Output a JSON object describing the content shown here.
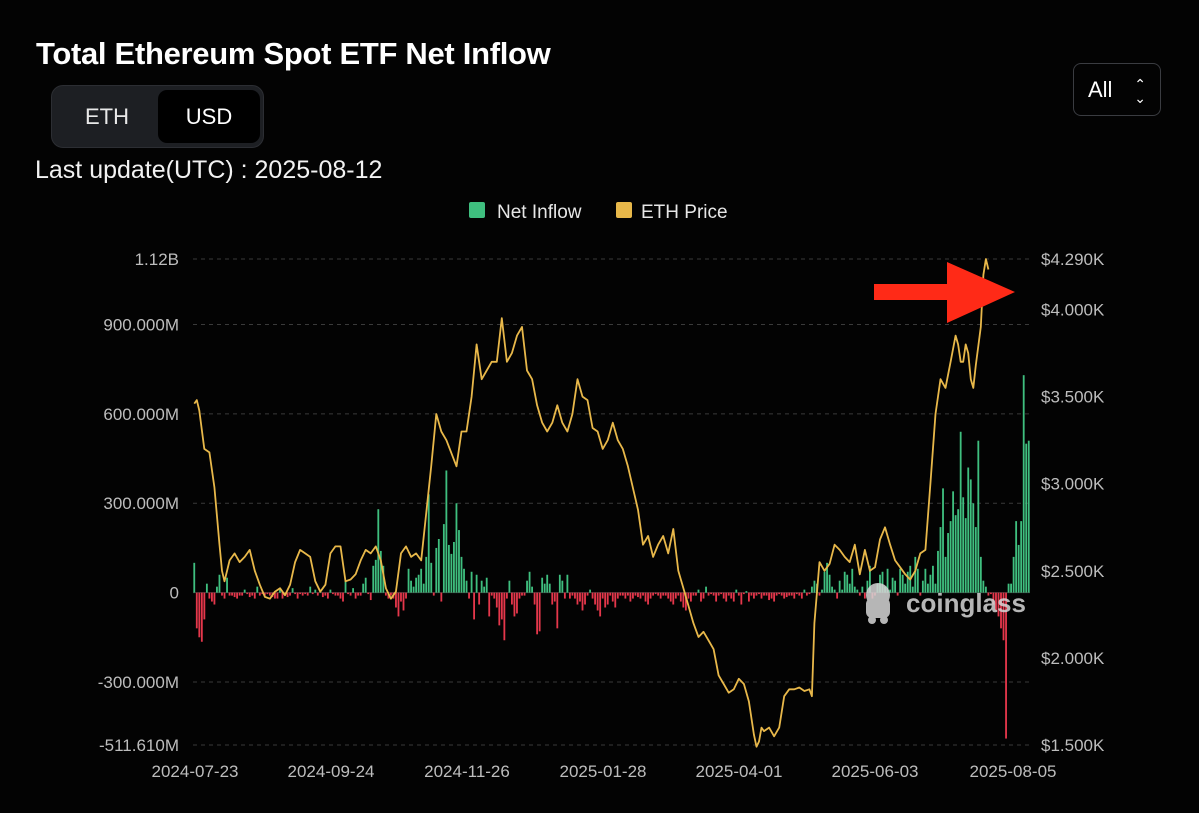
{
  "header": {
    "title": "Total Ethereum Spot ETF Net Inflow",
    "last_update": "Last update(UTC) : 2025-08-12"
  },
  "unit_toggle": {
    "options": [
      "ETH",
      "USD"
    ],
    "selected": "USD"
  },
  "range_select": {
    "value": "All"
  },
  "watermark": "coinglass",
  "colors": {
    "inflow": "#3fbf7f",
    "outflow": "#e5374b",
    "price": "#e8b84a",
    "grid": "#3a3a3a",
    "arrow": "#ff2a17"
  },
  "chart_data": {
    "type": "bar",
    "title": "Total Ethereum Spot ETF Net Inflow",
    "legend": [
      "Net Inflow",
      "ETH Price"
    ],
    "legend_position": "top-center",
    "x_tick_labels": [
      "2024-07-23",
      "2024-09-24",
      "2024-11-26",
      "2025-01-28",
      "2025-04-01",
      "2025-06-03",
      "2025-08-05"
    ],
    "x_range": [
      "2024-07-23",
      "2025-08-11"
    ],
    "left_axis": {
      "ylim": [
        -511610000,
        1120000000
      ],
      "tick_values": [
        1120000000,
        900000000,
        600000000,
        300000000,
        0,
        -300000000,
        -511610000
      ],
      "tick_labels": [
        "1.12B",
        "900.000M",
        "600.000M",
        "300.000M",
        "0",
        "-300.000M",
        "-511.610M"
      ]
    },
    "right_axis": {
      "ylim": [
        1500,
        4290
      ],
      "tick_values": [
        4290,
        4000,
        3500,
        3000,
        2500,
        2000,
        1500
      ],
      "tick_labels": [
        "$4.290K",
        "$4.000K",
        "$3.500K",
        "$3.000K",
        "$2.500K",
        "$2.000K",
        "$1.500K"
      ]
    },
    "series": [
      {
        "name": "Net Inflow",
        "axis": "left",
        "kind": "bar",
        "values": [
          100,
          -120,
          -150,
          -165,
          -90,
          30,
          -20,
          -30,
          -40,
          20,
          60,
          -10,
          -20,
          50,
          -10,
          -10,
          -15,
          -20,
          -10,
          -10,
          10,
          -5,
          -15,
          -10,
          -20,
          20,
          -10,
          -5,
          -10,
          -5,
          -10,
          -15,
          -20,
          -20,
          10,
          -20,
          -5,
          -15,
          -10,
          15,
          -5,
          -20,
          -5,
          -10,
          -5,
          -10,
          20,
          -5,
          10,
          -10,
          5,
          -15,
          -10,
          -20,
          10,
          -5,
          -10,
          -10,
          -20,
          -30,
          40,
          -5,
          -10,
          15,
          -20,
          -10,
          -10,
          30,
          50,
          -5,
          -25,
          90,
          110,
          280,
          140,
          90,
          -10,
          -20,
          -10,
          -20,
          -50,
          -80,
          -30,
          -60,
          -20,
          80,
          40,
          20,
          50,
          60,
          80,
          30,
          120,
          330,
          100,
          -10,
          150,
          180,
          -30,
          230,
          410,
          160,
          130,
          170,
          300,
          210,
          120,
          80,
          40,
          -20,
          70,
          -90,
          60,
          -40,
          40,
          20,
          50,
          -80,
          -10,
          -20,
          -50,
          -110,
          -90,
          -160,
          -20,
          40,
          -40,
          -80,
          -70,
          -20,
          -10,
          -10,
          40,
          70,
          20,
          -40,
          -140,
          -130,
          50,
          30,
          60,
          30,
          -40,
          -30,
          -120,
          60,
          40,
          -20,
          60,
          -20,
          -10,
          -20,
          -40,
          -30,
          -60,
          -40,
          -10,
          10,
          -20,
          -40,
          -60,
          -80,
          -20,
          -50,
          -40,
          -10,
          -30,
          -50,
          -20,
          -10,
          -10,
          -20,
          -10,
          -30,
          -20,
          -10,
          -15,
          -20,
          -10,
          -30,
          -40,
          -20,
          -10,
          -5,
          -10,
          -20,
          -10,
          -10,
          -20,
          -30,
          -40,
          -20,
          -10,
          -30,
          -50,
          -60,
          -20,
          -30,
          -10,
          -10,
          10,
          -30,
          -20,
          20,
          -10,
          -5,
          -10,
          -30,
          -10,
          -5,
          -20,
          -30,
          -10,
          -20,
          -30,
          10,
          -10,
          -40,
          -5,
          5,
          -30,
          -10,
          -20,
          -10,
          -5,
          -20,
          -10,
          -10,
          -25,
          -20,
          -30,
          -10,
          -5,
          -10,
          -20,
          -15,
          -10,
          -10,
          -20,
          -5,
          -10,
          -20,
          10,
          -10,
          -5,
          20,
          40,
          30,
          -10,
          10,
          70,
          100,
          60,
          20,
          10,
          -20,
          40,
          10,
          70,
          60,
          30,
          80,
          20,
          10,
          -10,
          20,
          -20,
          40,
          90,
          -20,
          -10,
          30,
          60,
          70,
          20,
          80,
          10,
          50,
          40,
          -10,
          80,
          60,
          30,
          70,
          90,
          20,
          120,
          80,
          -10,
          40,
          80,
          30,
          60,
          90,
          30,
          140,
          220,
          350,
          120,
          200,
          240,
          340,
          260,
          280,
          540,
          320,
          250,
          420,
          380,
          300,
          220,
          510,
          120,
          40,
          20,
          -10,
          -5,
          -40,
          -60,
          -80,
          -120,
          -160,
          -490,
          30,
          30,
          120,
          240,
          160,
          240,
          730,
          500,
          510
        ]
      },
      {
        "name": "ETH Price",
        "axis": "right",
        "kind": "line",
        "points": [
          [
            0,
            3460
          ],
          [
            1,
            3480
          ],
          [
            2,
            3420
          ],
          [
            4,
            3200
          ],
          [
            6,
            3180
          ],
          [
            8,
            2980
          ],
          [
            10,
            2650
          ],
          [
            11,
            2500
          ],
          [
            12,
            2440
          ],
          [
            14,
            2560
          ],
          [
            16,
            2600
          ],
          [
            18,
            2550
          ],
          [
            20,
            2580
          ],
          [
            22,
            2620
          ],
          [
            24,
            2500
          ],
          [
            26,
            2420
          ],
          [
            28,
            2350
          ],
          [
            30,
            2340
          ],
          [
            32,
            2380
          ],
          [
            34,
            2400
          ],
          [
            36,
            2360
          ],
          [
            38,
            2420
          ],
          [
            40,
            2550
          ],
          [
            42,
            2620
          ],
          [
            44,
            2600
          ],
          [
            46,
            2580
          ],
          [
            48,
            2440
          ],
          [
            50,
            2380
          ],
          [
            52,
            2420
          ],
          [
            54,
            2600
          ],
          [
            56,
            2640
          ],
          [
            58,
            2640
          ],
          [
            60,
            2440
          ],
          [
            62,
            2450
          ],
          [
            64,
            2480
          ],
          [
            66,
            2560
          ],
          [
            68,
            2620
          ],
          [
            70,
            2600
          ],
          [
            72,
            2640
          ],
          [
            74,
            2560
          ],
          [
            76,
            2400
          ],
          [
            78,
            2340
          ],
          [
            80,
            2380
          ],
          [
            82,
            2600
          ],
          [
            84,
            2640
          ],
          [
            86,
            2580
          ],
          [
            88,
            2600
          ],
          [
            90,
            2560
          ],
          [
            94,
            3100
          ],
          [
            96,
            3400
          ],
          [
            98,
            3300
          ],
          [
            100,
            3250
          ],
          [
            104,
            3100
          ],
          [
            106,
            3300
          ],
          [
            108,
            3300
          ],
          [
            110,
            3500
          ],
          [
            112,
            3800
          ],
          [
            114,
            3600
          ],
          [
            116,
            3650
          ],
          [
            118,
            3700
          ],
          [
            120,
            3700
          ],
          [
            122,
            3950
          ],
          [
            124,
            3700
          ],
          [
            126,
            3750
          ],
          [
            128,
            3850
          ],
          [
            130,
            3900
          ],
          [
            132,
            3650
          ],
          [
            134,
            3600
          ],
          [
            136,
            3450
          ],
          [
            138,
            3350
          ],
          [
            140,
            3300
          ],
          [
            142,
            3350
          ],
          [
            144,
            3450
          ],
          [
            146,
            3350
          ],
          [
            148,
            3300
          ],
          [
            150,
            3400
          ],
          [
            152,
            3600
          ],
          [
            154,
            3500
          ],
          [
            156,
            3480
          ],
          [
            158,
            3320
          ],
          [
            160,
            3300
          ],
          [
            162,
            3200
          ],
          [
            164,
            3250
          ],
          [
            166,
            3350
          ],
          [
            168,
            3250
          ],
          [
            170,
            3200
          ],
          [
            172,
            3100
          ],
          [
            176,
            2850
          ],
          [
            178,
            2650
          ],
          [
            180,
            2700
          ],
          [
            182,
            2580
          ],
          [
            184,
            2650
          ],
          [
            186,
            2700
          ],
          [
            188,
            2600
          ],
          [
            190,
            2740
          ],
          [
            192,
            2500
          ],
          [
            194,
            2400
          ],
          [
            196,
            2300
          ],
          [
            198,
            2200
          ],
          [
            200,
            2120
          ],
          [
            202,
            2150
          ],
          [
            204,
            2100
          ],
          [
            206,
            2050
          ],
          [
            208,
            1900
          ],
          [
            210,
            1850
          ],
          [
            212,
            1800
          ],
          [
            214,
            1820
          ],
          [
            216,
            1880
          ],
          [
            218,
            1850
          ],
          [
            220,
            1750
          ],
          [
            222,
            1560
          ],
          [
            223,
            1490
          ],
          [
            224,
            1520
          ],
          [
            225,
            1600
          ],
          [
            226,
            1580
          ],
          [
            228,
            1600
          ],
          [
            230,
            1550
          ],
          [
            232,
            1600
          ],
          [
            234,
            1780
          ],
          [
            236,
            1820
          ],
          [
            238,
            1820
          ],
          [
            240,
            1830
          ],
          [
            242,
            1810
          ],
          [
            244,
            1820
          ],
          [
            245,
            1780
          ],
          [
            246,
            2200
          ],
          [
            248,
            2550
          ],
          [
            250,
            2500
          ],
          [
            252,
            2540
          ],
          [
            254,
            2650
          ],
          [
            256,
            2620
          ],
          [
            258,
            2580
          ],
          [
            260,
            2550
          ],
          [
            262,
            2650
          ],
          [
            264,
            2480
          ],
          [
            266,
            2620
          ],
          [
            268,
            2500
          ],
          [
            270,
            2520
          ],
          [
            272,
            2680
          ],
          [
            274,
            2750
          ],
          [
            276,
            2650
          ],
          [
            278,
            2560
          ],
          [
            280,
            2520
          ],
          [
            282,
            2480
          ],
          [
            284,
            2450
          ],
          [
            286,
            2500
          ],
          [
            288,
            2600
          ],
          [
            290,
            2620
          ],
          [
            292,
            3000
          ],
          [
            294,
            3400
          ],
          [
            296,
            3600
          ],
          [
            298,
            3550
          ],
          [
            300,
            3700
          ],
          [
            302,
            3850
          ],
          [
            303,
            3800
          ],
          [
            304,
            3700
          ],
          [
            305,
            3700
          ],
          [
            306,
            3800
          ],
          [
            307,
            3750
          ],
          [
            308,
            3600
          ],
          [
            309,
            3550
          ],
          [
            310,
            3680
          ],
          [
            312,
            3900
          ],
          [
            313,
            4200
          ],
          [
            314,
            4290
          ],
          [
            315,
            4230
          ]
        ]
      }
    ]
  }
}
